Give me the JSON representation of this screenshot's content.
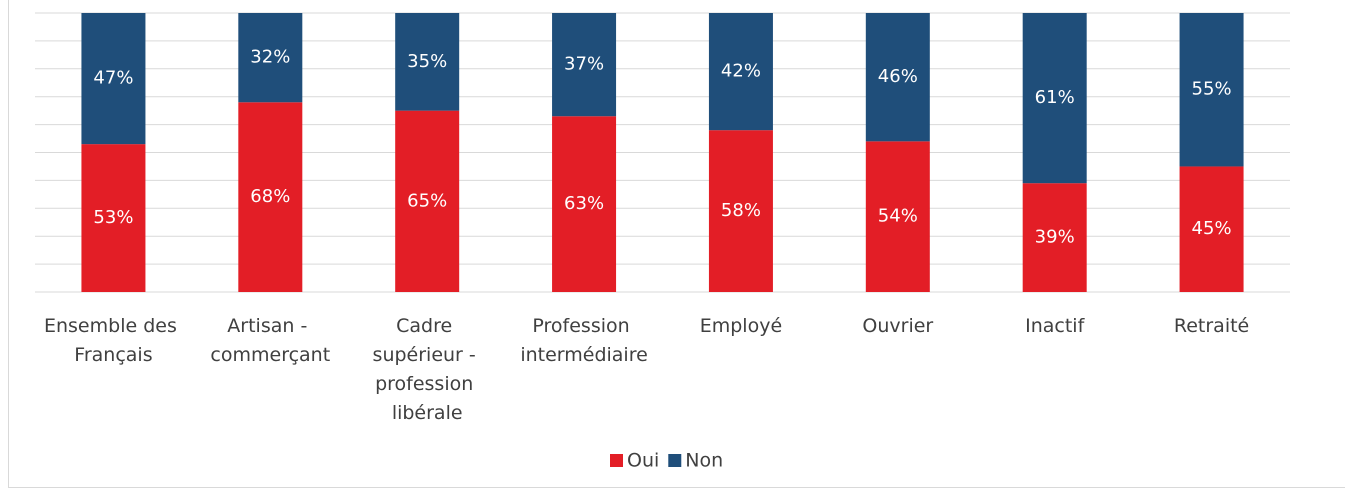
{
  "chart_data": {
    "type": "stacked_bar",
    "categories": [
      "Ensemble des Français",
      "Artisan - commerçant",
      "Cadre supérieur - profession libérale",
      "Profession intermédiaire",
      "Employé",
      "Ouvrier",
      "Inactif",
      "Retraité"
    ],
    "series": [
      {
        "name": "Oui",
        "color": "#e31e26",
        "values": [
          53,
          68,
          65,
          63,
          58,
          54,
          39,
          45
        ],
        "value_labels": [
          "53%",
          "68%",
          "65%",
          "63%",
          "58%",
          "54%",
          "39%",
          "45%"
        ]
      },
      {
        "name": "Non",
        "color": "#1f4e7a",
        "values": [
          47,
          32,
          35,
          37,
          42,
          46,
          61,
          55
        ],
        "value_labels": [
          "47%",
          "32%",
          "35%",
          "37%",
          "42%",
          "46%",
          "61%",
          "55%"
        ]
      }
    ],
    "ylim": [
      0,
      100
    ],
    "yticks": [
      0,
      10,
      20,
      30,
      40,
      50,
      60,
      70,
      80,
      90,
      100
    ],
    "grid": true,
    "legend": "bottom"
  }
}
